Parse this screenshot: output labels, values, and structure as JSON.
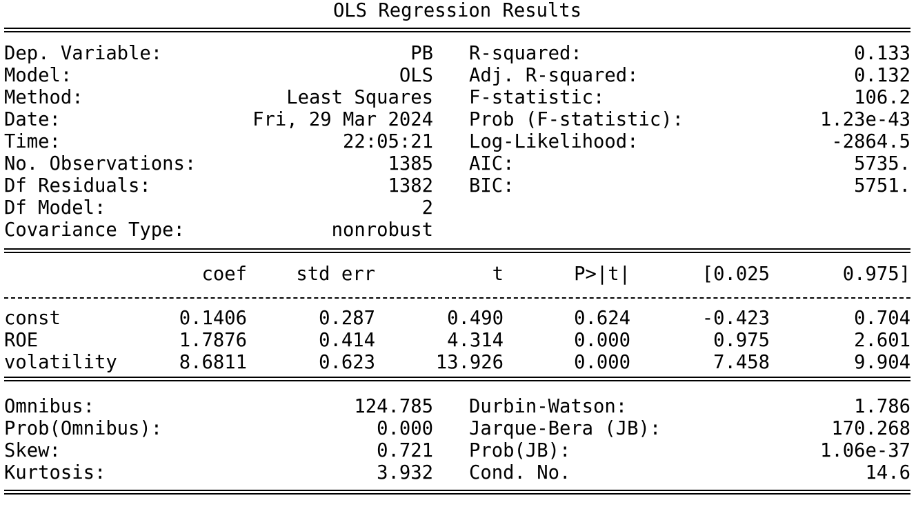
{
  "title": "OLS Regression Results",
  "top_left": [
    {
      "label": "Dep. Variable:",
      "value": "PB"
    },
    {
      "label": "Model:",
      "value": "OLS"
    },
    {
      "label": "Method:",
      "value": "Least Squares"
    },
    {
      "label": "Date:",
      "value": "Fri, 29 Mar 2024"
    },
    {
      "label": "Time:",
      "value": "22:05:21"
    },
    {
      "label": "No. Observations:",
      "value": "1385"
    },
    {
      "label": "Df Residuals:",
      "value": "1382"
    },
    {
      "label": "Df Model:",
      "value": "2"
    },
    {
      "label": "Covariance Type:",
      "value": "nonrobust"
    }
  ],
  "top_right": [
    {
      "label": "R-squared:",
      "value": "0.133"
    },
    {
      "label": "Adj. R-squared:",
      "value": "0.132"
    },
    {
      "label": "F-statistic:",
      "value": "106.2"
    },
    {
      "label": "Prob (F-statistic):",
      "value": "1.23e-43"
    },
    {
      "label": "Log-Likelihood:",
      "value": "-2864.5"
    },
    {
      "label": "AIC:",
      "value": "5735."
    },
    {
      "label": "BIC:",
      "value": "5751."
    }
  ],
  "coef_headers": [
    "coef",
    "std err",
    "t",
    "P>|t|",
    "[0.025",
    "0.975]"
  ],
  "coef_rows": [
    {
      "name": "const",
      "values": [
        "0.1406",
        "0.287",
        "0.490",
        "0.624",
        "-0.423",
        "0.704"
      ]
    },
    {
      "name": "ROE",
      "values": [
        "1.7876",
        "0.414",
        "4.314",
        "0.000",
        "0.975",
        "2.601"
      ]
    },
    {
      "name": "volatility",
      "values": [
        "8.6811",
        "0.623",
        "13.926",
        "0.000",
        "7.458",
        "9.904"
      ]
    }
  ],
  "bottom_left": [
    {
      "label": "Omnibus:",
      "value": "124.785"
    },
    {
      "label": "Prob(Omnibus):",
      "value": "0.000"
    },
    {
      "label": "Skew:",
      "value": "0.721"
    },
    {
      "label": "Kurtosis:",
      "value": "3.932"
    }
  ],
  "bottom_right": [
    {
      "label": "Durbin-Watson:",
      "value": "1.786"
    },
    {
      "label": "Jarque-Bera (JB):",
      "value": "170.268"
    },
    {
      "label": "Prob(JB):",
      "value": "1.06e-37"
    },
    {
      "label": "Cond. No.",
      "value": "14.6"
    }
  ]
}
